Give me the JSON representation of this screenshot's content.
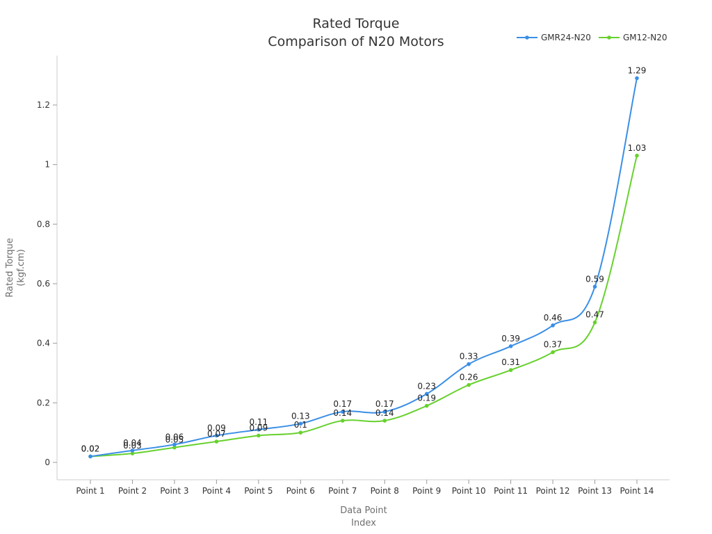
{
  "chart_data": {
    "type": "line",
    "title": "Rated Torque\nComparison of N20 Motors",
    "title_lines": [
      "Rated Torque",
      "Comparison of N20 Motors"
    ],
    "xlabel": "Data Point\nIndex",
    "xlabel_lines": [
      "Data Point",
      "Index"
    ],
    "ylabel": "Rated Torque\n(kgf.cm)",
    "ylabel_lines": [
      "Rated Torque",
      "(kgf.cm)"
    ],
    "categories": [
      "Point 1",
      "Point 2",
      "Point 3",
      "Point 4",
      "Point 5",
      "Point 6",
      "Point 7",
      "Point 8",
      "Point 9",
      "Point 10",
      "Point 11",
      "Point 12",
      "Point 13",
      "Point 14"
    ],
    "series": [
      {
        "name": "GMR24-N20",
        "color": "#3a8ee6",
        "values": [
          0.02,
          0.04,
          0.06,
          0.09,
          0.11,
          0.13,
          0.17,
          0.17,
          0.23,
          0.33,
          0.39,
          0.46,
          0.59,
          1.29
        ]
      },
      {
        "name": "GM12-N20",
        "color": "#67d12e",
        "values": [
          0.02,
          0.03,
          0.05,
          0.07,
          0.09,
          0.1,
          0.14,
          0.14,
          0.19,
          0.26,
          0.31,
          0.37,
          0.47,
          1.03
        ]
      }
    ],
    "yticks": [
      0,
      0.2,
      0.4,
      0.6,
      0.8,
      1,
      1.2
    ],
    "ylim": [
      -0.06,
      1.36
    ],
    "grid": false,
    "legend_position": "top-right",
    "smooth": true,
    "data_labels": true
  }
}
